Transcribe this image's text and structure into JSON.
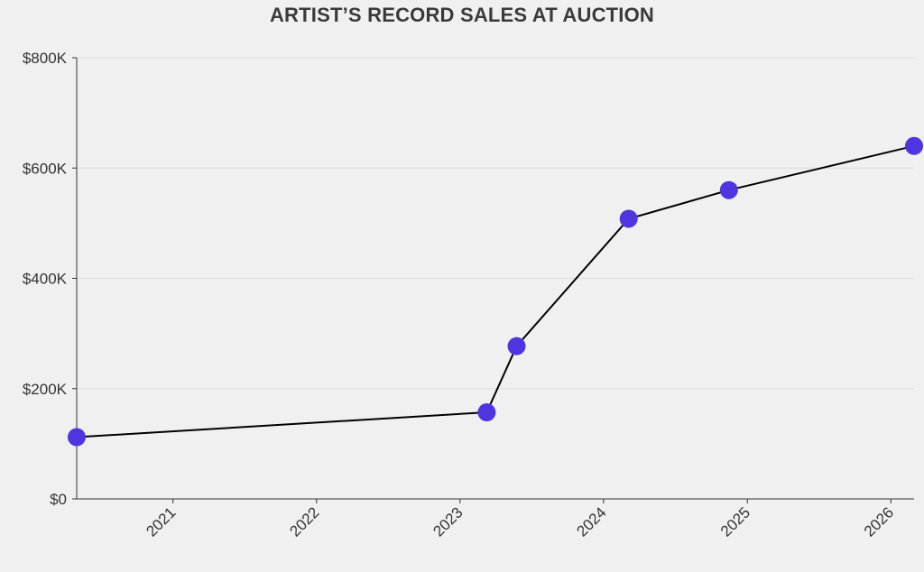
{
  "chart_data": {
    "type": "line",
    "title": "ARTIST’S RECORD SALES AT AUCTION",
    "xlabel": "",
    "ylabel": "",
    "x_axis": {
      "kind": "date",
      "range": [
        "2020-05-01",
        "2026-03-01"
      ],
      "ticks": [
        "2021",
        "2022",
        "2023",
        "2024",
        "2025",
        "2026"
      ]
    },
    "y_axis": {
      "range": [
        0,
        800000
      ],
      "ticks": [
        0,
        200000,
        400000,
        600000,
        800000
      ],
      "tick_labels": [
        "$0",
        "$200K",
        "$400K",
        "$600K",
        "$800K"
      ]
    },
    "grid": true,
    "series": [
      {
        "color": "#4f35e0",
        "line_color": "#000000",
        "points": [
          {
            "x": "2020-05-01",
            "y": 112000
          },
          {
            "x": "2023-03-10",
            "y": 157000
          },
          {
            "x": "2023-05-25",
            "y": 277000
          },
          {
            "x": "2024-03-05",
            "y": 508000
          },
          {
            "x": "2024-11-15",
            "y": 560000
          },
          {
            "x": "2026-03-01",
            "y": 640000
          }
        ]
      }
    ]
  }
}
